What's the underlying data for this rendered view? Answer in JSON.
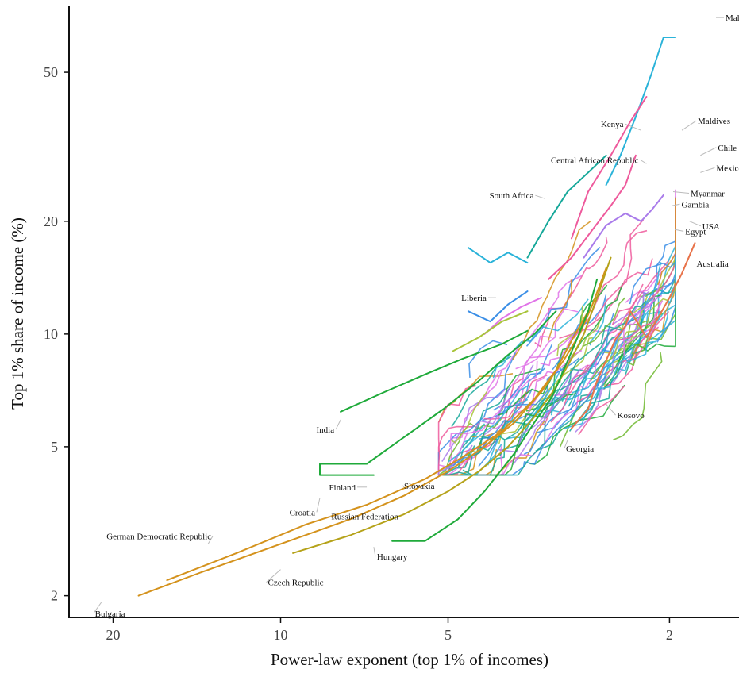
{
  "chart_data": {
    "type": "line",
    "xlabel": "Power-law exponent (top 1% of incomes)",
    "ylabel": "Top 1% share of income (%)",
    "x_scale": "log-reversed",
    "y_scale": "log",
    "xlim": [
      24,
      1.5
    ],
    "ylim": [
      1.75,
      75
    ],
    "x_ticks": [
      20,
      10,
      5,
      2
    ],
    "y_ticks": [
      2,
      5,
      10,
      20,
      50
    ],
    "grid": false,
    "legend": "none",
    "labels": [
      {
        "name": "Malawi",
        "alpha": 1.65,
        "share": 70
      },
      {
        "name": "Kenya",
        "alpha": 2.25,
        "share": 35
      },
      {
        "name": "Maldives",
        "alpha": 1.9,
        "share": 35
      },
      {
        "name": "Chile",
        "alpha": 1.76,
        "share": 30
      },
      {
        "name": "Central African Republic",
        "alpha": 2.2,
        "share": 28.5
      },
      {
        "name": "Mexico",
        "alpha": 1.76,
        "share": 27
      },
      {
        "name": "Myanmar",
        "alpha": 1.97,
        "share": 24
      },
      {
        "name": "South Africa",
        "alpha": 3.35,
        "share": 23
      },
      {
        "name": "Gambia",
        "alpha": 1.98,
        "share": 22
      },
      {
        "name": "USA",
        "alpha": 1.84,
        "share": 20
      },
      {
        "name": "Egypt",
        "alpha": 1.95,
        "share": 19
      },
      {
        "name": "Australia",
        "alpha": 1.8,
        "share": 16.5
      },
      {
        "name": "Liberia",
        "alpha": 4.1,
        "share": 12.5
      },
      {
        "name": "Kosovo",
        "alpha": 2.6,
        "share": 6.5
      },
      {
        "name": "India",
        "alpha": 7.8,
        "share": 5.9
      },
      {
        "name": "Georgia",
        "alpha": 3.05,
        "share": 5.2
      },
      {
        "name": "Finland",
        "alpha": 7.0,
        "share": 3.9
      },
      {
        "name": "Slovakia",
        "alpha": 6.0,
        "share": 3.9
      },
      {
        "name": "Croatia",
        "alpha": 8.5,
        "share": 3.65
      },
      {
        "name": "Russian Federation",
        "alpha": 8.0,
        "share": 3.2
      },
      {
        "name": "German Democratic Republic",
        "alpha": 13.5,
        "share": 2.75
      },
      {
        "name": "Hungary",
        "alpha": 6.8,
        "share": 2.7
      },
      {
        "name": "Czech Republic",
        "alpha": 10.0,
        "share": 2.35
      },
      {
        "name": "Bulgaria",
        "alpha": 21.0,
        "share": 1.92
      }
    ],
    "trajectories": [
      {
        "color": "#d4921c",
        "points": [
          [
            18.0,
            2.0
          ],
          [
            14.0,
            2.3
          ],
          [
            10.0,
            2.75
          ],
          [
            7.5,
            3.2
          ],
          [
            6.0,
            3.7
          ],
          [
            5.0,
            4.3
          ],
          [
            4.3,
            5.0
          ],
          [
            3.8,
            5.8
          ],
          [
            3.4,
            7.0
          ],
          [
            3.1,
            8.5
          ],
          [
            2.9,
            10.0
          ],
          [
            2.75,
            12.0
          ],
          [
            2.6,
            15.0
          ]
        ]
      },
      {
        "color": "#d4921c",
        "points": [
          [
            16.0,
            2.2
          ],
          [
            12.0,
            2.6
          ],
          [
            9.0,
            3.1
          ],
          [
            7.0,
            3.5
          ],
          [
            5.5,
            4.1
          ],
          [
            4.7,
            4.7
          ],
          [
            4.0,
            5.5
          ],
          [
            3.5,
            6.7
          ],
          [
            3.2,
            8.0
          ],
          [
            3.0,
            9.6
          ],
          [
            2.8,
            11.5
          ]
        ]
      },
      {
        "color": "#b5a219",
        "points": [
          [
            9.5,
            2.6
          ],
          [
            7.5,
            2.9
          ],
          [
            6.0,
            3.3
          ],
          [
            5.0,
            3.8
          ],
          [
            4.4,
            4.3
          ],
          [
            3.9,
            5.0
          ],
          [
            3.5,
            6.0
          ],
          [
            3.2,
            7.2
          ],
          [
            3.0,
            8.6
          ],
          [
            2.85,
            10.0
          ],
          [
            2.7,
            12.5
          ],
          [
            2.55,
            16.0
          ]
        ]
      },
      {
        "color": "#1faa3a",
        "points": [
          [
            6.3,
            2.8
          ],
          [
            5.5,
            2.8
          ],
          [
            4.8,
            3.2
          ],
          [
            4.3,
            3.8
          ],
          [
            3.8,
            4.8
          ],
          [
            3.5,
            5.8
          ],
          [
            3.25,
            6.8
          ],
          [
            3.1,
            8.0
          ],
          [
            2.95,
            9.5
          ],
          [
            2.8,
            11.5
          ],
          [
            2.7,
            14.0
          ]
        ]
      },
      {
        "color": "#1faa3a",
        "points": [
          [
            6.8,
            4.2
          ],
          [
            8.5,
            4.2
          ],
          [
            8.5,
            4.5
          ],
          [
            7.0,
            4.5
          ],
          [
            6.0,
            5.3
          ],
          [
            5.1,
            6.3
          ],
          [
            4.4,
            7.5
          ],
          [
            3.9,
            8.8
          ],
          [
            3.5,
            10.0
          ],
          [
            3.2,
            11.5
          ]
        ]
      },
      {
        "color": "#1faa3a",
        "points": [
          [
            7.8,
            6.2
          ],
          [
            6.5,
            7.0
          ],
          [
            5.5,
            7.8
          ],
          [
            4.7,
            8.6
          ],
          [
            4.0,
            9.4
          ],
          [
            3.6,
            10.2
          ]
        ]
      },
      {
        "color": "#e8734a",
        "points": [
          [
            3.0,
            5.6
          ],
          [
            2.8,
            6.3
          ],
          [
            2.7,
            7.5
          ],
          [
            2.6,
            8.5
          ],
          [
            2.5,
            9.7
          ],
          [
            2.4,
            10.5
          ],
          [
            2.35,
            11.5
          ],
          [
            2.2,
            9.8
          ],
          [
            2.1,
            11.0
          ],
          [
            2.0,
            12.5
          ],
          [
            1.9,
            14.5
          ],
          [
            1.8,
            17.5
          ]
        ]
      },
      {
        "color": "#2bb3d9",
        "points": [
          [
            2.6,
            25.0
          ],
          [
            2.45,
            30.0
          ],
          [
            2.3,
            38.0
          ],
          [
            2.15,
            50.0
          ],
          [
            2.05,
            62.0
          ],
          [
            1.95,
            62.0
          ]
        ]
      },
      {
        "color": "#ee5a9c",
        "points": [
          [
            3.0,
            18.0
          ],
          [
            2.8,
            24.0
          ],
          [
            2.55,
            30.0
          ],
          [
            2.35,
            37.0
          ],
          [
            2.2,
            43.0
          ]
        ]
      },
      {
        "color": "#ee5a9c",
        "points": [
          [
            3.3,
            14.0
          ],
          [
            3.0,
            16.0
          ],
          [
            2.75,
            19.0
          ],
          [
            2.55,
            22.0
          ],
          [
            2.4,
            25.0
          ],
          [
            2.3,
            30.0
          ]
        ]
      },
      {
        "color": "#a97bea",
        "points": [
          [
            2.85,
            16.0
          ],
          [
            2.6,
            19.5
          ],
          [
            2.4,
            21.0
          ],
          [
            2.25,
            20.0
          ],
          [
            2.15,
            21.5
          ],
          [
            2.05,
            23.5
          ]
        ]
      },
      {
        "color": "#16a89a",
        "points": [
          [
            3.6,
            16.0
          ],
          [
            3.3,
            20.0
          ],
          [
            3.05,
            24.0
          ],
          [
            2.8,
            27.0
          ],
          [
            2.6,
            30.0
          ]
        ]
      },
      {
        "color": "#2bb3d9",
        "points": [
          [
            4.6,
            17.0
          ],
          [
            4.2,
            15.5
          ],
          [
            3.9,
            16.5
          ],
          [
            3.6,
            15.5
          ]
        ]
      },
      {
        "color": "#e073e8",
        "points": [
          [
            4.3,
            10.0
          ],
          [
            4.0,
            11.0
          ],
          [
            3.7,
            11.8
          ],
          [
            3.4,
            12.5
          ]
        ]
      },
      {
        "color": "#3a8ee6",
        "points": [
          [
            4.6,
            11.5
          ],
          [
            4.2,
            10.8
          ],
          [
            3.9,
            12.0
          ],
          [
            3.6,
            13.0
          ]
        ]
      },
      {
        "color": "#a8c43a",
        "points": [
          [
            4.9,
            9.0
          ],
          [
            4.4,
            9.8
          ],
          [
            4.0,
            10.8
          ],
          [
            3.6,
            11.5
          ]
        ]
      }
    ]
  }
}
